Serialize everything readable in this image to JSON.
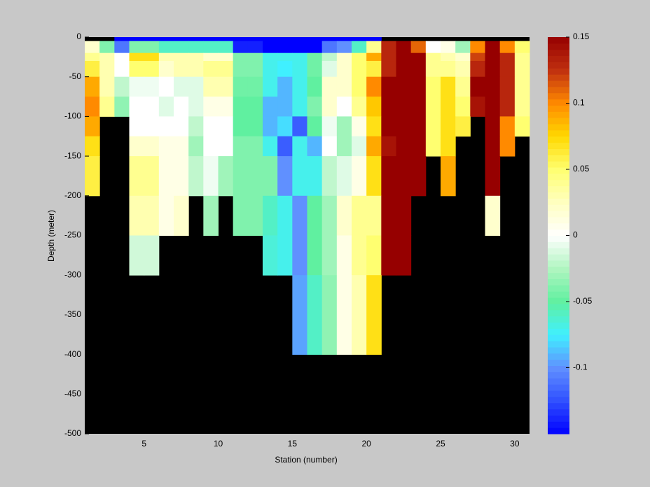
{
  "chart_data": {
    "type": "heatmap",
    "xlabel": "Station (number)",
    "ylabel": "Depth (meter)",
    "x_edges": [
      1,
      2,
      3,
      4,
      5,
      6,
      7,
      8,
      9,
      10,
      11,
      12,
      13,
      14,
      15,
      16,
      17,
      18,
      19,
      20,
      21,
      22,
      23,
      24,
      25,
      26,
      27,
      28,
      29,
      30,
      31
    ],
    "y_edges": [
      0,
      -5,
      -20,
      -30,
      -50,
      -75,
      -100,
      -125,
      -150,
      -200,
      -250,
      -300,
      -400
    ],
    "values": [
      [
        null,
        null,
        -0.15,
        -0.15,
        -0.15,
        -0.15,
        -0.15,
        -0.15,
        -0.15,
        -0.15,
        -0.15,
        -0.15,
        -0.15,
        -0.15,
        -0.15,
        -0.15,
        -0.15,
        -0.15,
        -0.15,
        -0.15,
        null,
        null,
        null,
        null,
        null,
        null,
        null,
        null,
        null,
        null
      ],
      [
        0.02,
        -0.04,
        -0.11,
        -0.04,
        -0.04,
        -0.06,
        -0.06,
        -0.06,
        -0.06,
        -0.06,
        -0.14,
        -0.14,
        -0.15,
        -0.15,
        -0.15,
        -0.15,
        -0.11,
        -0.1,
        -0.06,
        0.04,
        0.13,
        0.15,
        0.11,
        0,
        0.01,
        -0.03,
        0.1,
        0.15,
        0.1,
        0.05
      ],
      [
        0.04,
        0.03,
        0,
        0.07,
        0.07,
        0.03,
        0.03,
        0.03,
        0.02,
        0.02,
        -0.04,
        -0.04,
        -0.07,
        -0.07,
        -0.07,
        -0.045,
        -0.02,
        0.02,
        0.05,
        0.09,
        0.13,
        0.15,
        0.15,
        0.04,
        0.03,
        0.02,
        0.12,
        0.15,
        0.13,
        0.04
      ],
      [
        0.06,
        0.03,
        0,
        0.05,
        0.05,
        0.02,
        0.03,
        0.03,
        0.04,
        0.04,
        -0.04,
        -0.04,
        -0.07,
        -0.075,
        -0.07,
        -0.045,
        -0.01,
        0.02,
        0.05,
        0.06,
        0.13,
        0.15,
        0.15,
        0.04,
        0.04,
        0.03,
        0.13,
        0.15,
        0.13,
        0.04
      ],
      [
        0.09,
        0.03,
        -0.02,
        -0.005,
        -0.005,
        0,
        -0.01,
        -0.01,
        0.03,
        0.03,
        -0.045,
        -0.045,
        -0.07,
        -0.09,
        -0.07,
        -0.05,
        0.02,
        0.02,
        0.05,
        0.1,
        0.15,
        0.15,
        0.15,
        0.05,
        0.07,
        0.04,
        0.15,
        0.15,
        0.13,
        0.04
      ],
      [
        0.1,
        0.04,
        -0.035,
        0,
        0,
        -0.01,
        0,
        -0.01,
        0.01,
        0.01,
        -0.05,
        -0.05,
        -0.09,
        -0.09,
        -0.07,
        -0.04,
        0.02,
        0,
        0.04,
        0.08,
        0.15,
        0.15,
        0.15,
        0.05,
        0.07,
        0.05,
        0.14,
        0.15,
        0.13,
        0.04
      ],
      [
        0.09,
        null,
        null,
        0,
        0,
        0,
        0,
        -0.02,
        0,
        0,
        -0.05,
        -0.05,
        -0.09,
        -0.08,
        -0.12,
        -0.05,
        -0.005,
        -0.03,
        0.01,
        0.07,
        0.15,
        0.15,
        0.15,
        0.05,
        0.07,
        0.06,
        null,
        0.15,
        0.1,
        0.05
      ],
      [
        0.07,
        null,
        null,
        0.02,
        0.02,
        0.01,
        0.01,
        -0.03,
        0,
        0,
        -0.04,
        -0.04,
        -0.07,
        -0.12,
        -0.07,
        -0.09,
        0,
        -0.03,
        -0.01,
        0.09,
        0.14,
        0.15,
        0.15,
        0.05,
        0.07,
        null,
        null,
        0.15,
        0.1,
        null
      ],
      [
        0.06,
        null,
        null,
        0.04,
        0.04,
        0.01,
        0.01,
        -0.02,
        -0.005,
        -0.03,
        -0.04,
        -0.04,
        -0.04,
        -0.1,
        -0.07,
        -0.07,
        -0.02,
        -0.01,
        0.01,
        0.07,
        0.15,
        0.15,
        0.15,
        null,
        0.09,
        null,
        null,
        0.15,
        null,
        null
      ],
      [
        null,
        null,
        null,
        0.03,
        0.03,
        0.01,
        0.02,
        null,
        -0.03,
        null,
        -0.04,
        -0.04,
        -0.06,
        -0.07,
        -0.1,
        -0.05,
        -0.03,
        0.02,
        0.04,
        0.04,
        0.15,
        0.15,
        null,
        null,
        null,
        null,
        null,
        0.02,
        null,
        null
      ],
      [
        null,
        null,
        null,
        -0.015,
        -0.015,
        null,
        null,
        null,
        null,
        null,
        null,
        null,
        -0.065,
        -0.07,
        -0.1,
        -0.05,
        -0.03,
        0.01,
        0.04,
        0.05,
        0.15,
        0.15,
        null,
        null,
        null,
        null,
        null,
        null,
        null,
        null
      ],
      [
        null,
        null,
        null,
        null,
        null,
        null,
        null,
        null,
        null,
        null,
        null,
        null,
        null,
        null,
        -0.095,
        -0.06,
        -0.035,
        0.01,
        0.03,
        0.07,
        null,
        null,
        null,
        null,
        null,
        null,
        null,
        null,
        null,
        null
      ]
    ],
    "xlim": [
      1,
      31
    ],
    "xticks": [
      5,
      10,
      15,
      20,
      25,
      30
    ],
    "ylim": [
      -500,
      0
    ],
    "yticks": [
      0,
      -50,
      -100,
      -150,
      -200,
      -250,
      -300,
      -350,
      -400,
      -450,
      -500
    ],
    "clim": [
      -0.15,
      0.15
    ],
    "cticks": [
      0.15,
      0.1,
      0.05,
      0,
      -0.05,
      -0.1
    ],
    "colormap": [
      "#0000ff",
      "#3050ff",
      "#6090ff",
      "#40f0ff",
      "#60f0a0",
      "#b0f5c0",
      "#ffffff",
      "#ffffc0",
      "#ffff70",
      "#ffd800",
      "#ff8a00",
      "#c03010",
      "#960000"
    ],
    "missing_color": "#000000"
  }
}
